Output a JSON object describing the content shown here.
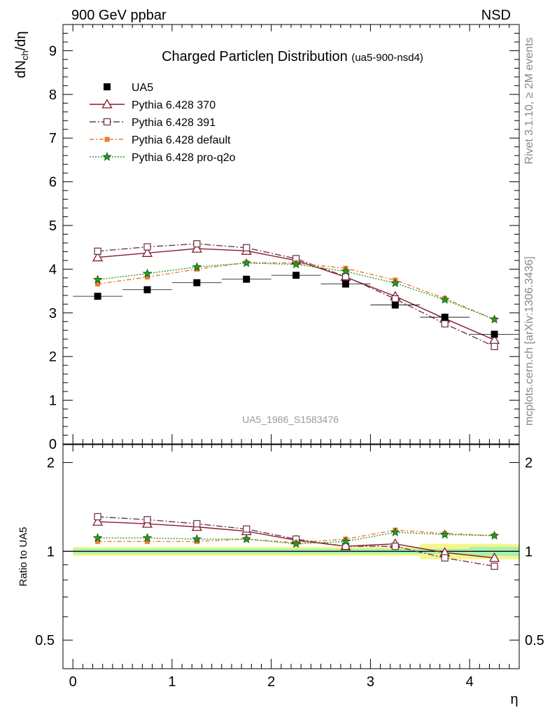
{
  "header": {
    "left": "900 GeV ppbar",
    "right": "NSD"
  },
  "side": {
    "rivet": "Rivet 3.1.10, ≥ 2M events",
    "mcplots": "mcplots.cern.ch [arXiv:1306.3436]"
  },
  "chart_data": {
    "type": "scatter",
    "title": "Charged Particleη Distribution",
    "subtitle": "(ua5-900-nsd4)",
    "ylabel": "dN",
    "ylabel_sub": "ch",
    "ylabel_tail": "/dη",
    "xlabel": "η",
    "ratio_ylabel": "Ratio to UA5",
    "watermark": "UA5_1986_S1583476",
    "xlim": [
      -0.1,
      4.5
    ],
    "ylim": [
      0,
      9.6
    ],
    "ratio_ylim": [
      0.4,
      2.3
    ],
    "x_ticks": [
      "0",
      "1",
      "2",
      "3",
      "4"
    ],
    "y_ticks": [
      "0",
      "1",
      "2",
      "3",
      "4",
      "5",
      "6",
      "7",
      "8",
      "9"
    ],
    "ratio_ticks": [
      "0.5",
      "1",
      "2"
    ],
    "x": [
      0.25,
      0.75,
      1.25,
      1.75,
      2.25,
      2.75,
      3.25,
      3.75,
      4.25
    ],
    "legend_position": "top-left",
    "series": [
      {
        "name": "UA5",
        "color": "#000000",
        "marker": "filled-square",
        "values": [
          3.38,
          3.53,
          3.69,
          3.77,
          3.86,
          3.66,
          3.18,
          2.9,
          2.51
        ],
        "ratio": [
          1,
          1,
          1,
          1,
          1,
          1,
          1,
          1,
          1
        ]
      },
      {
        "name": "Pythia 6.428 370",
        "color": "#8b1a2a",
        "marker": "open-triangle",
        "dash": "",
        "values": [
          4.27,
          4.37,
          4.47,
          4.42,
          4.2,
          3.82,
          3.38,
          2.87,
          2.38
        ],
        "ratio": [
          1.26,
          1.24,
          1.21,
          1.17,
          1.09,
          1.04,
          1.06,
          0.99,
          0.95
        ]
      },
      {
        "name": "Pythia 6.428 391",
        "color": "#6e3a4e",
        "marker": "open-square",
        "dash": "9,3,2,3",
        "values": [
          4.41,
          4.51,
          4.58,
          4.49,
          4.24,
          3.83,
          3.32,
          2.75,
          2.23
        ],
        "ratio": [
          1.31,
          1.28,
          1.24,
          1.19,
          1.1,
          1.04,
          1.04,
          0.95,
          0.89
        ]
      },
      {
        "name": "Pythia 6.428 default",
        "color": "#f07830",
        "marker": "filled-square-small",
        "dash": "6,3,2,3",
        "values": [
          3.66,
          3.82,
          4.0,
          4.15,
          4.14,
          4.02,
          3.75,
          3.33,
          2.85
        ],
        "ratio": [
          1.08,
          1.08,
          1.08,
          1.1,
          1.07,
          1.1,
          1.18,
          1.15,
          1.13
        ]
      },
      {
        "name": "Pythia 6.428 pro-q2o",
        "color": "#2a9a2a",
        "marker": "star",
        "dash": "2,2",
        "values": [
          3.76,
          3.9,
          4.05,
          4.14,
          4.11,
          3.95,
          3.68,
          3.3,
          2.85
        ],
        "ratio": [
          1.11,
          1.11,
          1.1,
          1.1,
          1.06,
          1.08,
          1.16,
          1.14,
          1.13
        ]
      }
    ]
  }
}
